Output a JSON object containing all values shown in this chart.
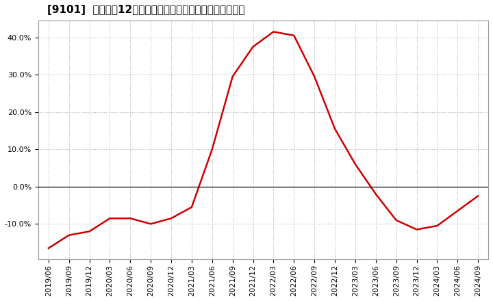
{
  "title": "[9101]  売上高の12か月移動合計の対前年同期増減率の推移",
  "line_color": "#cc0000",
  "bg_color": "#ffffff",
  "plot_bg_color": "#ffffff",
  "grid_color": "#aaaaaa",
  "x_labels": [
    "2019/06",
    "2019/09",
    "2019/12",
    "2020/03",
    "2020/06",
    "2020/09",
    "2020/12",
    "2021/03",
    "2021/06",
    "2021/09",
    "2021/12",
    "2022/03",
    "2022/06",
    "2022/09",
    "2022/12",
    "2023/03",
    "2023/06",
    "2023/09",
    "2023/12",
    "2024/03",
    "2024/06",
    "2024/09"
  ],
  "x_values": [
    0,
    1,
    2,
    3,
    4,
    5,
    6,
    7,
    8,
    9,
    10,
    11,
    12,
    13,
    14,
    15,
    16,
    17,
    18,
    19,
    20,
    21
  ],
  "y_values": [
    -0.165,
    -0.13,
    -0.12,
    -0.085,
    -0.085,
    -0.1,
    -0.085,
    -0.055,
    0.1,
    0.295,
    0.375,
    0.415,
    0.405,
    0.295,
    0.155,
    0.06,
    -0.02,
    -0.09,
    -0.115,
    -0.105,
    -0.065,
    -0.025
  ],
  "ylim": [
    -0.195,
    0.445
  ],
  "yticks": [
    -0.1,
    0.0,
    0.1,
    0.2,
    0.3,
    0.4
  ],
  "y_zero_line": true,
  "title_fontsize": 11,
  "tick_fontsize": 8,
  "line_width": 1.8
}
